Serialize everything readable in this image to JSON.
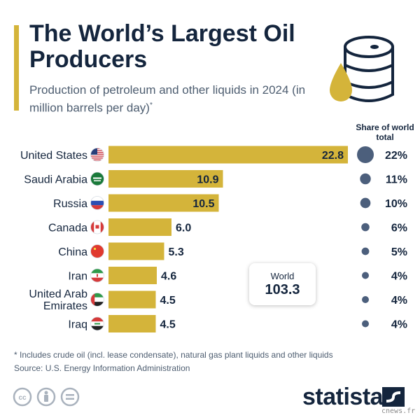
{
  "title": "The World’s Largest Oil Producers",
  "subtitle": "Production of petroleum and other liquids in 2024 (in million barrels per day)",
  "subtitle_marker": "*",
  "share_header": "Share of world total",
  "world_box": {
    "label": "World",
    "value": "103.3"
  },
  "footnote": "* Includes crude oil (incl. lease condensate), natural gas plant liquids and other liquids",
  "source": "Source: U.S. Energy Information Administration",
  "brand": "statista",
  "watermark": "cnews.fr",
  "icons": [
    "oil-barrel-icon",
    "cc-license-icon",
    "attribution-icon",
    "no-derivatives-icon",
    "statista-logo-icon"
  ],
  "colors": {
    "bar": "#d4b43a",
    "dot": "#4c5f7c",
    "title": "#14253d"
  },
  "chart_data": {
    "type": "bar",
    "orientation": "horizontal",
    "categories": [
      "United States",
      "Saudi Arabia",
      "Russia",
      "Canada",
      "China",
      "Iran",
      "United Arab Emirates",
      "Iraq"
    ],
    "values": [
      22.8,
      10.9,
      10.5,
      6.0,
      5.3,
      4.6,
      4.5,
      4.5
    ],
    "value_labels": [
      "22.8",
      "10.9",
      "10.5",
      "6.0",
      "5.3",
      "4.6",
      "4.5",
      "4.5"
    ],
    "share_labels": [
      "22%",
      "11%",
      "10%",
      "6%",
      "5%",
      "4%",
      "4%",
      "4%"
    ],
    "share_values": [
      22,
      11,
      10,
      6,
      5,
      4,
      4,
      4
    ],
    "flags": [
      "us-flag-icon",
      "saudi-arabia-flag-icon",
      "russia-flag-icon",
      "canada-flag-icon",
      "china-flag-icon",
      "iran-flag-icon",
      "uae-flag-icon",
      "iraq-flag-icon"
    ],
    "xlim": [
      0,
      22.8
    ],
    "grid": false,
    "legend": "none"
  }
}
